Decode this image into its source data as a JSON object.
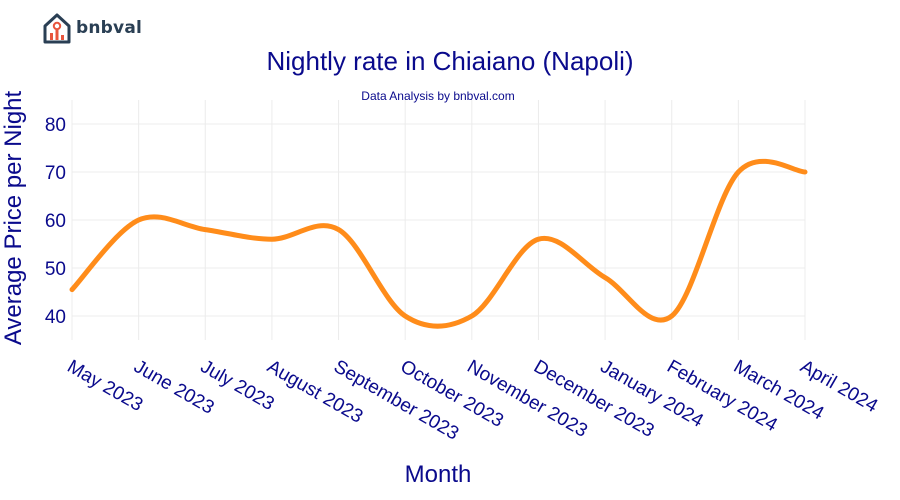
{
  "logo": {
    "text": "bnbval",
    "icon": "house-chart-icon"
  },
  "chart_data": {
    "type": "line",
    "title": "Nightly rate in Chiaiano (Napoli)",
    "subtitle": "Data Analysis by bnbval.com",
    "xlabel": "Month",
    "ylabel": "Average Price per Night",
    "categories": [
      "May 2023",
      "June 2023",
      "July 2023",
      "August 2023",
      "September 2023",
      "October 2023",
      "November 2023",
      "December 2023",
      "January 2024",
      "February 2024",
      "March 2024",
      "April 2024"
    ],
    "values": [
      45.5,
      60,
      58,
      56,
      58,
      40,
      40,
      56,
      48,
      40,
      70,
      70
    ],
    "ylim": [
      35,
      85
    ],
    "yticks": [
      40,
      50,
      60,
      70,
      80
    ],
    "line_color": "#ff8c1a",
    "text_color": "#0a0a8c",
    "grid": true,
    "smooth": true
  }
}
